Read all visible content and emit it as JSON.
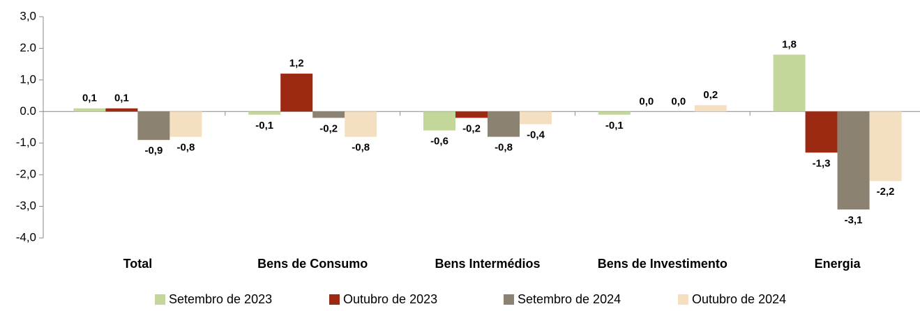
{
  "chart_data": {
    "type": "bar",
    "categories": [
      "Total",
      "Bens de Consumo",
      "Bens Intermédios",
      "Bens de Investimento",
      "Energia"
    ],
    "series": [
      {
        "name": "Setembro de 2023",
        "color": "#c4d79b",
        "values": [
          0.1,
          -0.1,
          -0.6,
          -0.1,
          1.8
        ],
        "value_labels": [
          "0,1",
          "-0,1",
          "-0,6",
          "-0,1",
          "1,8"
        ]
      },
      {
        "name": "Outubro de 2023",
        "color": "#9c2a12",
        "values": [
          0.1,
          1.2,
          -0.2,
          0.0,
          -1.3
        ],
        "value_labels": [
          "0,1",
          "1,2",
          "-0,2",
          "0,0",
          "-1,3"
        ]
      },
      {
        "name": "Setembro de 2024",
        "color": "#8b8271",
        "values": [
          -0.9,
          -0.2,
          -0.8,
          0.0,
          -3.1
        ],
        "value_labels": [
          "-0,9",
          "-0,2",
          "-0,8",
          "0,0",
          "-3,1"
        ]
      },
      {
        "name": "Outubro de 2024",
        "color": "#f4dfc0",
        "values": [
          -0.8,
          -0.8,
          -0.4,
          0.2,
          -2.2
        ],
        "value_labels": [
          "-0,8",
          "-0,8",
          "-0,4",
          "0,2",
          "-2,2"
        ]
      }
    ],
    "ylim": [
      -4,
      3
    ],
    "yticks": [
      {
        "value": -4,
        "label": "-4,0"
      },
      {
        "value": -3,
        "label": "-3,0"
      },
      {
        "value": -2,
        "label": "-2,0"
      },
      {
        "value": -1,
        "label": "-1,0"
      },
      {
        "value": 0,
        "label": "0.0"
      },
      {
        "value": 1,
        "label": "1,0"
      },
      {
        "value": 2,
        "label": "2.0"
      },
      {
        "value": 3,
        "label": "3,0"
      }
    ],
    "legend": "bottom"
  }
}
